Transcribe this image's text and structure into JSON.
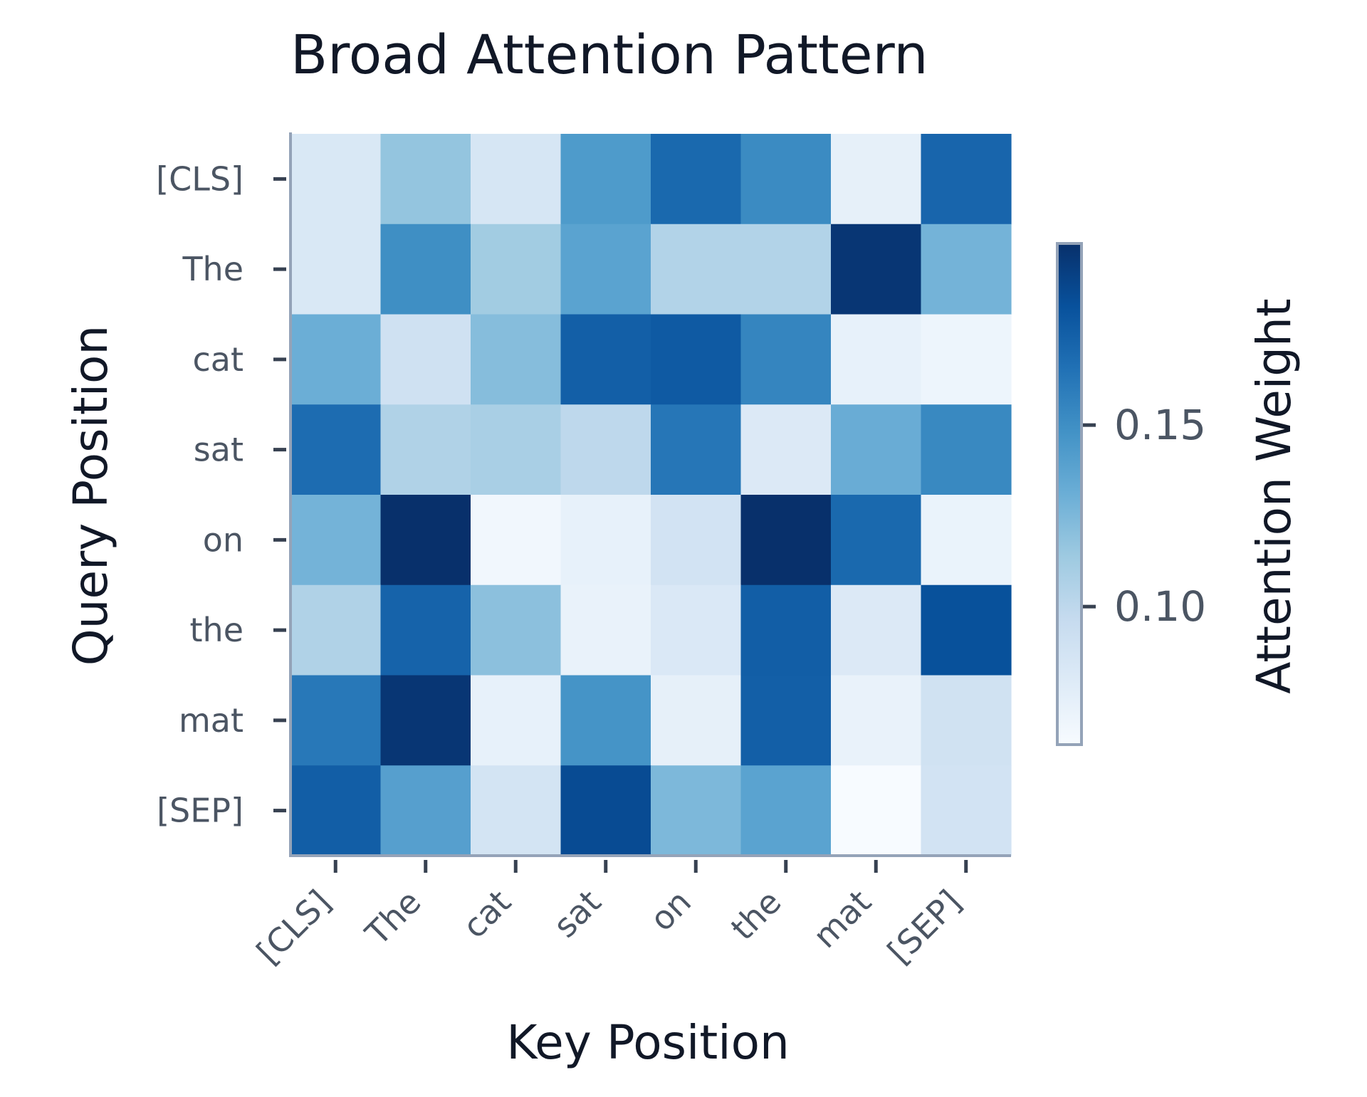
{
  "chart_data": {
    "type": "heatmap",
    "title": "Broad Attention Pattern",
    "xlabel": "Key Position",
    "ylabel": "Query Position",
    "colorbar_label": "Attention Weight",
    "colormap": "Blues",
    "x_categories": [
      "[CLS]",
      "The",
      "cat",
      "sat",
      "on",
      "the",
      "mat",
      "[SEP]"
    ],
    "y_categories": [
      "[CLS]",
      "The",
      "cat",
      "sat",
      "on",
      "the",
      "mat",
      "[SEP]"
    ],
    "values": [
      [
        0.083,
        0.117,
        0.085,
        0.143,
        0.17,
        0.152,
        0.074,
        0.172
      ],
      [
        0.083,
        0.15,
        0.112,
        0.138,
        0.105,
        0.105,
        0.197,
        0.128
      ],
      [
        0.131,
        0.09,
        0.122,
        0.175,
        0.178,
        0.155,
        0.073,
        0.069
      ],
      [
        0.168,
        0.106,
        0.109,
        0.1,
        0.163,
        0.081,
        0.132,
        0.153
      ],
      [
        0.128,
        0.2,
        0.066,
        0.073,
        0.088,
        0.2,
        0.17,
        0.071
      ],
      [
        0.106,
        0.173,
        0.12,
        0.072,
        0.082,
        0.176,
        0.081,
        0.183
      ],
      [
        0.162,
        0.197,
        0.073,
        0.147,
        0.074,
        0.175,
        0.072,
        0.089
      ],
      [
        0.176,
        0.14,
        0.087,
        0.186,
        0.125,
        0.138,
        0.062,
        0.088
      ]
    ],
    "colorbar_range": [
      0.062,
      0.2
    ],
    "colorbar_ticks": [
      "0.10",
      "0.15"
    ],
    "colors": {
      "title": "#111827",
      "tick_text": "#4b5563",
      "axis_line": "#94a3b8",
      "tick_mark": "#374151"
    }
  }
}
